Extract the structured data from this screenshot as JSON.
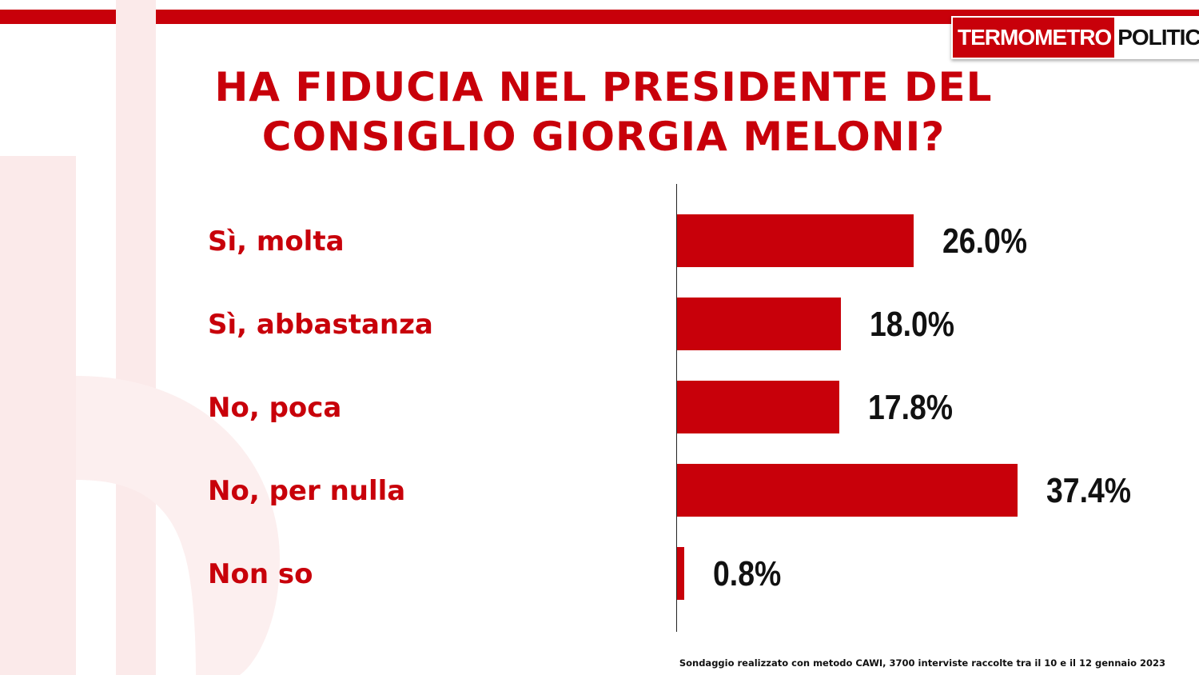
{
  "logo": {
    "part1": "TERMOMETRO",
    "part2": "POLITICO"
  },
  "title_line1": "HA FIDUCIA NEL PRESIDENTE DEL",
  "title_line2": "CONSIGLIO GIORGIA MELONI?",
  "footnote": "Sondaggio realizzato con metodo CAWI, 3700 interviste raccolte tra il 10 e il 12 gennaio 2023",
  "colors": {
    "accent": "#c8000a",
    "value_text": "#111111"
  },
  "chart_data": {
    "type": "bar",
    "orientation": "horizontal",
    "title": "HA FIDUCIA NEL PRESIDENTE DEL CONSIGLIO GIORGIA MELONI?",
    "categories": [
      "Sì, molta",
      "Sì, abbastanza",
      "No, poca",
      "No, per nulla",
      "Non so"
    ],
    "values": [
      26.0,
      18.0,
      17.8,
      37.4,
      0.8
    ],
    "value_labels": [
      "26.0%",
      "18.0%",
      "17.8%",
      "37.4%",
      "0.8%"
    ],
    "unit": "%",
    "grid": false,
    "legend": "none"
  }
}
